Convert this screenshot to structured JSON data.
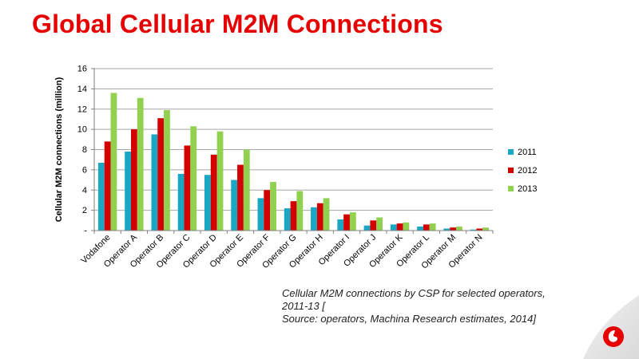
{
  "slide": {
    "title": "Global Cellular M2M Connections",
    "caption_lines": [
      "Cellular M2M connections by CSP for selected operators,",
      "2011-13 [",
      "Source: operators, Machina Research estimates, 2014]"
    ]
  },
  "colors": {
    "title": "#e60000",
    "series_2011": "#1aa7c3",
    "series_2012": "#d40000",
    "series_2013": "#92d050",
    "logo": "#e60000"
  },
  "logo": {
    "icon": "vodafone-speechmark-icon"
  },
  "chart_data": {
    "type": "bar",
    "ylabel": "Cellular M2M connections (million)",
    "xlabel": "",
    "ylim": [
      0,
      16
    ],
    "yticks": [
      0,
      2,
      4,
      6,
      8,
      10,
      12,
      14,
      16
    ],
    "ytick_labels": [
      "-",
      "2",
      "4",
      "6",
      "8",
      "10",
      "12",
      "14",
      "16"
    ],
    "grid": true,
    "legend_position": "right",
    "categories": [
      "Vodafone",
      "Operator A",
      "Operator B",
      "Operator C",
      "Operator D",
      "Operator E",
      "Operator F",
      "Operator G",
      "Operator H",
      "Operator I",
      "Operator J",
      "Operator K",
      "Operator L",
      "Operator M",
      "Operator N"
    ],
    "series": [
      {
        "name": "2011",
        "values": [
          6.7,
          7.8,
          9.5,
          5.6,
          5.5,
          5.0,
          3.2,
          2.2,
          2.3,
          1.1,
          0.5,
          0.6,
          0.4,
          0.2,
          0.1
        ]
      },
      {
        "name": "2012",
        "values": [
          8.8,
          10.0,
          11.1,
          8.4,
          7.5,
          6.5,
          4.0,
          2.9,
          2.7,
          1.6,
          1.0,
          0.7,
          0.6,
          0.3,
          0.2
        ]
      },
      {
        "name": "2013",
        "values": [
          13.6,
          13.1,
          11.9,
          10.3,
          9.8,
          8.0,
          4.8,
          3.9,
          3.2,
          1.8,
          1.3,
          0.8,
          0.7,
          0.4,
          0.3
        ]
      }
    ]
  }
}
